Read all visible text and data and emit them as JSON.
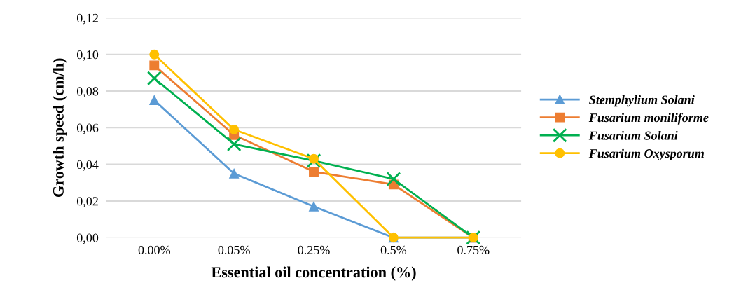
{
  "chart_data": {
    "type": "line",
    "xlabel": "Essential oil concentration (%)",
    "ylabel": "Growth speed (cm/h)",
    "categories": [
      "0.00%",
      "0.05%",
      "0.25%",
      "0.5%",
      "0.75%"
    ],
    "series": [
      {
        "name": "Stemphylium Solani",
        "color": "#5b9bd5",
        "marker": "triangle",
        "values": [
          0.075,
          0.035,
          0.017,
          0,
          0
        ]
      },
      {
        "name": "Fusarium moniliforme",
        "color": "#ed7d31",
        "marker": "square",
        "values": [
          0.094,
          0.056,
          0.036,
          0.029,
          0
        ]
      },
      {
        "name": "Fusarium Solani",
        "color": "#00b050",
        "marker": "cross",
        "values": [
          0.087,
          0.051,
          0.042,
          0.032,
          0
        ]
      },
      {
        "name": "Fusarium Oxysporum",
        "color": "#ffc000",
        "marker": "circle",
        "values": [
          0.1,
          0.059,
          0.043,
          0,
          0
        ]
      }
    ],
    "ylim": [
      0,
      0.12
    ],
    "yticks": [
      {
        "value": 0,
        "label": "0,00"
      },
      {
        "value": 0.02,
        "label": "0,02"
      },
      {
        "value": 0.04,
        "label": "0,04"
      },
      {
        "value": 0.06,
        "label": "0,06"
      },
      {
        "value": 0.08,
        "label": "0,08"
      },
      {
        "value": 0.1,
        "label": "0,10"
      },
      {
        "value": 0.12,
        "label": "0,12"
      }
    ],
    "grid": "y",
    "legend": "right",
    "line_style": "solid"
  }
}
